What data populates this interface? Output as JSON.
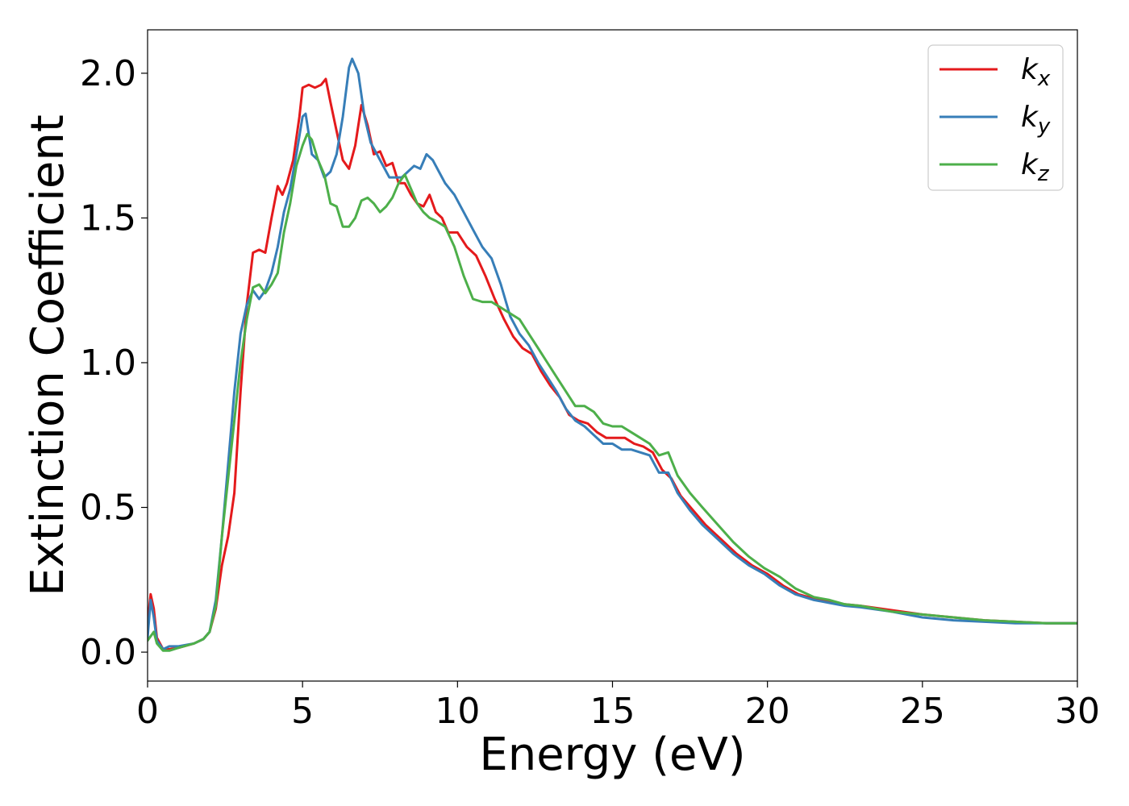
{
  "chart_data": {
    "type": "line",
    "title": "",
    "xlabel": "Energy (eV)",
    "ylabel": "Extinction Coefficient",
    "xlim": [
      0,
      30
    ],
    "ylim": [
      -0.1,
      2.15
    ],
    "xticks": [
      0,
      5,
      10,
      15,
      20,
      25,
      30
    ],
    "xtick_labels": [
      "0",
      "5",
      "10",
      "15",
      "20",
      "25",
      "30"
    ],
    "yticks": [
      0.0,
      0.5,
      1.0,
      1.5,
      2.0
    ],
    "ytick_labels": [
      "0.0",
      "0.5",
      "1.0",
      "1.5",
      "2.0"
    ],
    "grid": false,
    "legend_position": "top-right",
    "series": [
      {
        "name": "k",
        "subscript": "x",
        "color": "#e41a1c",
        "points": [
          [
            0,
            0.1
          ],
          [
            0.1,
            0.2
          ],
          [
            0.2,
            0.15
          ],
          [
            0.3,
            0.05
          ],
          [
            0.5,
            0.01
          ],
          [
            0.7,
            0.01
          ],
          [
            1.0,
            0.015
          ],
          [
            1.5,
            0.03
          ],
          [
            1.8,
            0.045
          ],
          [
            2.0,
            0.07
          ],
          [
            2.2,
            0.15
          ],
          [
            2.4,
            0.3
          ],
          [
            2.6,
            0.4
          ],
          [
            2.8,
            0.55
          ],
          [
            3.0,
            0.9
          ],
          [
            3.2,
            1.2
          ],
          [
            3.4,
            1.38
          ],
          [
            3.6,
            1.39
          ],
          [
            3.8,
            1.38
          ],
          [
            4.0,
            1.5
          ],
          [
            4.2,
            1.61
          ],
          [
            4.35,
            1.58
          ],
          [
            4.5,
            1.62
          ],
          [
            4.7,
            1.7
          ],
          [
            4.9,
            1.85
          ],
          [
            5.0,
            1.95
          ],
          [
            5.2,
            1.96
          ],
          [
            5.4,
            1.95
          ],
          [
            5.6,
            1.96
          ],
          [
            5.75,
            1.98
          ],
          [
            5.9,
            1.9
          ],
          [
            6.1,
            1.8
          ],
          [
            6.3,
            1.7
          ],
          [
            6.5,
            1.67
          ],
          [
            6.7,
            1.75
          ],
          [
            6.9,
            1.89
          ],
          [
            7.1,
            1.82
          ],
          [
            7.3,
            1.72
          ],
          [
            7.5,
            1.73
          ],
          [
            7.7,
            1.68
          ],
          [
            7.9,
            1.69
          ],
          [
            8.1,
            1.62
          ],
          [
            8.3,
            1.62
          ],
          [
            8.5,
            1.58
          ],
          [
            8.7,
            1.55
          ],
          [
            8.9,
            1.54
          ],
          [
            9.1,
            1.58
          ],
          [
            9.3,
            1.52
          ],
          [
            9.5,
            1.5
          ],
          [
            9.7,
            1.45
          ],
          [
            10.0,
            1.45
          ],
          [
            10.3,
            1.4
          ],
          [
            10.6,
            1.37
          ],
          [
            10.9,
            1.3
          ],
          [
            11.2,
            1.22
          ],
          [
            11.5,
            1.15
          ],
          [
            11.8,
            1.09
          ],
          [
            12.1,
            1.05
          ],
          [
            12.4,
            1.03
          ],
          [
            12.7,
            0.97
          ],
          [
            13.0,
            0.92
          ],
          [
            13.3,
            0.88
          ],
          [
            13.6,
            0.82
          ],
          [
            13.9,
            0.8
          ],
          [
            14.2,
            0.79
          ],
          [
            14.5,
            0.76
          ],
          [
            14.8,
            0.74
          ],
          [
            15.1,
            0.74
          ],
          [
            15.4,
            0.74
          ],
          [
            15.7,
            0.72
          ],
          [
            16.0,
            0.71
          ],
          [
            16.3,
            0.69
          ],
          [
            16.6,
            0.63
          ],
          [
            16.9,
            0.6
          ],
          [
            17.2,
            0.54
          ],
          [
            17.6,
            0.49
          ],
          [
            18.0,
            0.44
          ],
          [
            18.5,
            0.39
          ],
          [
            19.0,
            0.34
          ],
          [
            19.5,
            0.3
          ],
          [
            20.0,
            0.27
          ],
          [
            20.5,
            0.23
          ],
          [
            21.0,
            0.2
          ],
          [
            21.5,
            0.185
          ],
          [
            22.0,
            0.175
          ],
          [
            22.5,
            0.165
          ],
          [
            23.0,
            0.16
          ],
          [
            24.0,
            0.145
          ],
          [
            25.0,
            0.13
          ],
          [
            26.0,
            0.12
          ],
          [
            27.0,
            0.11
          ],
          [
            28.0,
            0.105
          ],
          [
            29.0,
            0.1
          ],
          [
            30.0,
            0.1
          ]
        ]
      },
      {
        "name": "k",
        "subscript": "y",
        "color": "#377eb8",
        "points": [
          [
            0,
            0.05
          ],
          [
            0.1,
            0.18
          ],
          [
            0.2,
            0.12
          ],
          [
            0.3,
            0.04
          ],
          [
            0.5,
            0.01
          ],
          [
            0.7,
            0.02
          ],
          [
            1.0,
            0.02
          ],
          [
            1.5,
            0.03
          ],
          [
            1.8,
            0.045
          ],
          [
            2.0,
            0.07
          ],
          [
            2.2,
            0.18
          ],
          [
            2.4,
            0.4
          ],
          [
            2.6,
            0.65
          ],
          [
            2.8,
            0.9
          ],
          [
            3.0,
            1.1
          ],
          [
            3.2,
            1.2
          ],
          [
            3.4,
            1.25
          ],
          [
            3.6,
            1.22
          ],
          [
            3.8,
            1.25
          ],
          [
            4.0,
            1.31
          ],
          [
            4.2,
            1.4
          ],
          [
            4.4,
            1.52
          ],
          [
            4.6,
            1.6
          ],
          [
            4.8,
            1.72
          ],
          [
            5.0,
            1.85
          ],
          [
            5.1,
            1.86
          ],
          [
            5.3,
            1.72
          ],
          [
            5.5,
            1.7
          ],
          [
            5.7,
            1.64
          ],
          [
            5.9,
            1.66
          ],
          [
            6.1,
            1.72
          ],
          [
            6.3,
            1.85
          ],
          [
            6.5,
            2.02
          ],
          [
            6.6,
            2.05
          ],
          [
            6.8,
            2.0
          ],
          [
            7.0,
            1.85
          ],
          [
            7.2,
            1.76
          ],
          [
            7.4,
            1.72
          ],
          [
            7.6,
            1.68
          ],
          [
            7.8,
            1.64
          ],
          [
            8.0,
            1.64
          ],
          [
            8.2,
            1.64
          ],
          [
            8.4,
            1.66
          ],
          [
            8.6,
            1.68
          ],
          [
            8.8,
            1.67
          ],
          [
            9.0,
            1.72
          ],
          [
            9.2,
            1.7
          ],
          [
            9.4,
            1.66
          ],
          [
            9.6,
            1.62
          ],
          [
            9.9,
            1.58
          ],
          [
            10.2,
            1.52
          ],
          [
            10.5,
            1.46
          ],
          [
            10.8,
            1.4
          ],
          [
            11.1,
            1.36
          ],
          [
            11.4,
            1.27
          ],
          [
            11.7,
            1.16
          ],
          [
            12.0,
            1.1
          ],
          [
            12.3,
            1.06
          ],
          [
            12.6,
            1.0
          ],
          [
            12.9,
            0.95
          ],
          [
            13.2,
            0.9
          ],
          [
            13.5,
            0.84
          ],
          [
            13.8,
            0.8
          ],
          [
            14.1,
            0.78
          ],
          [
            14.4,
            0.75
          ],
          [
            14.7,
            0.72
          ],
          [
            15.0,
            0.72
          ],
          [
            15.3,
            0.7
          ],
          [
            15.6,
            0.7
          ],
          [
            15.9,
            0.69
          ],
          [
            16.2,
            0.68
          ],
          [
            16.5,
            0.62
          ],
          [
            16.8,
            0.62
          ],
          [
            17.1,
            0.55
          ],
          [
            17.5,
            0.49
          ],
          [
            17.9,
            0.44
          ],
          [
            18.4,
            0.39
          ],
          [
            18.9,
            0.34
          ],
          [
            19.4,
            0.3
          ],
          [
            19.9,
            0.27
          ],
          [
            20.4,
            0.23
          ],
          [
            20.9,
            0.2
          ],
          [
            21.5,
            0.18
          ],
          [
            22.0,
            0.17
          ],
          [
            22.5,
            0.16
          ],
          [
            23.0,
            0.155
          ],
          [
            24.0,
            0.14
          ],
          [
            25.0,
            0.12
          ],
          [
            26.0,
            0.11
          ],
          [
            27.0,
            0.105
          ],
          [
            28.0,
            0.1
          ],
          [
            29.0,
            0.1
          ],
          [
            30.0,
            0.1
          ]
        ]
      },
      {
        "name": "k",
        "subscript": "z",
        "color": "#4daf4a",
        "points": [
          [
            0,
            0.04
          ],
          [
            0.2,
            0.07
          ],
          [
            0.3,
            0.03
          ],
          [
            0.5,
            0.005
          ],
          [
            0.7,
            0.005
          ],
          [
            1.0,
            0.015
          ],
          [
            1.5,
            0.03
          ],
          [
            1.8,
            0.045
          ],
          [
            2.0,
            0.07
          ],
          [
            2.2,
            0.16
          ],
          [
            2.4,
            0.4
          ],
          [
            2.6,
            0.6
          ],
          [
            2.8,
            0.8
          ],
          [
            3.0,
            1.0
          ],
          [
            3.2,
            1.15
          ],
          [
            3.4,
            1.26
          ],
          [
            3.6,
            1.27
          ],
          [
            3.8,
            1.24
          ],
          [
            4.0,
            1.27
          ],
          [
            4.2,
            1.31
          ],
          [
            4.4,
            1.45
          ],
          [
            4.6,
            1.55
          ],
          [
            4.8,
            1.68
          ],
          [
            5.0,
            1.75
          ],
          [
            5.15,
            1.79
          ],
          [
            5.3,
            1.77
          ],
          [
            5.5,
            1.7
          ],
          [
            5.7,
            1.65
          ],
          [
            5.9,
            1.55
          ],
          [
            6.1,
            1.54
          ],
          [
            6.3,
            1.47
          ],
          [
            6.5,
            1.47
          ],
          [
            6.7,
            1.5
          ],
          [
            6.9,
            1.56
          ],
          [
            7.1,
            1.57
          ],
          [
            7.3,
            1.55
          ],
          [
            7.5,
            1.52
          ],
          [
            7.7,
            1.54
          ],
          [
            7.9,
            1.57
          ],
          [
            8.1,
            1.62
          ],
          [
            8.3,
            1.65
          ],
          [
            8.5,
            1.6
          ],
          [
            8.7,
            1.55
          ],
          [
            8.9,
            1.52
          ],
          [
            9.1,
            1.5
          ],
          [
            9.3,
            1.49
          ],
          [
            9.6,
            1.47
          ],
          [
            9.9,
            1.4
          ],
          [
            10.2,
            1.3
          ],
          [
            10.5,
            1.22
          ],
          [
            10.8,
            1.21
          ],
          [
            11.1,
            1.21
          ],
          [
            11.4,
            1.19
          ],
          [
            11.7,
            1.17
          ],
          [
            12.0,
            1.15
          ],
          [
            12.3,
            1.1
          ],
          [
            12.6,
            1.05
          ],
          [
            12.9,
            1.0
          ],
          [
            13.2,
            0.95
          ],
          [
            13.5,
            0.9
          ],
          [
            13.8,
            0.85
          ],
          [
            14.1,
            0.85
          ],
          [
            14.4,
            0.83
          ],
          [
            14.7,
            0.79
          ],
          [
            15.0,
            0.78
          ],
          [
            15.3,
            0.78
          ],
          [
            15.6,
            0.76
          ],
          [
            15.9,
            0.74
          ],
          [
            16.2,
            0.72
          ],
          [
            16.5,
            0.68
          ],
          [
            16.8,
            0.69
          ],
          [
            17.1,
            0.61
          ],
          [
            17.5,
            0.55
          ],
          [
            17.9,
            0.5
          ],
          [
            18.4,
            0.44
          ],
          [
            18.9,
            0.38
          ],
          [
            19.4,
            0.33
          ],
          [
            19.9,
            0.29
          ],
          [
            20.4,
            0.26
          ],
          [
            20.9,
            0.22
          ],
          [
            21.5,
            0.19
          ],
          [
            22.0,
            0.18
          ],
          [
            22.5,
            0.165
          ],
          [
            23.0,
            0.16
          ],
          [
            24.0,
            0.14
          ],
          [
            25.0,
            0.13
          ],
          [
            26.0,
            0.12
          ],
          [
            27.0,
            0.11
          ],
          [
            28.0,
            0.105
          ],
          [
            29.0,
            0.1
          ],
          [
            30.0,
            0.1
          ]
        ]
      }
    ]
  }
}
